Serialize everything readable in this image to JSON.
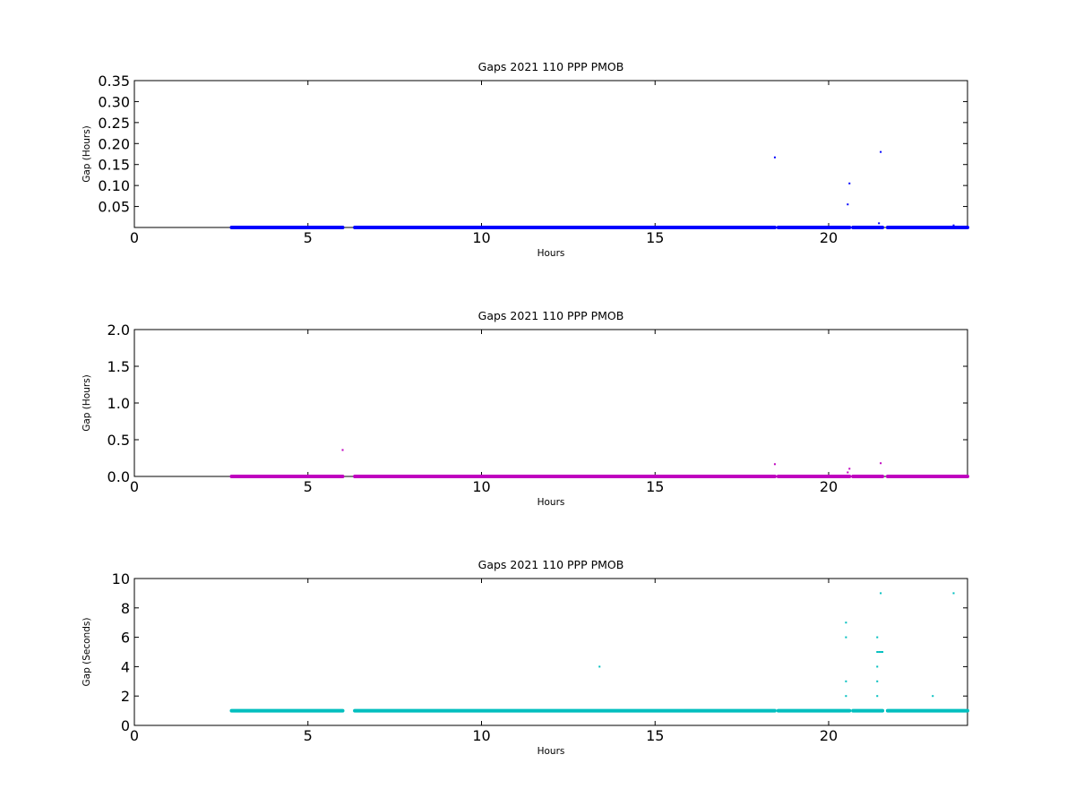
{
  "chart_data": [
    {
      "type": "scatter",
      "title": "Gaps 2021 110 PPP  PMOB",
      "xlabel": "Hours",
      "ylabel": "Gap (Hours)",
      "xlim": [
        0,
        24
      ],
      "ylim": [
        0,
        0.35
      ],
      "x_ticks": [
        "0",
        "5",
        "10",
        "15",
        "20"
      ],
      "y_ticks": [
        "0.05",
        "0.10",
        "0.15",
        "0.20",
        "0.25",
        "0.30",
        "0.35"
      ],
      "color": "#0000ff",
      "grid": false,
      "baseline_segments": [
        [
          2.8,
          6.0
        ],
        [
          6.35,
          18.45
        ],
        [
          18.55,
          20.6
        ],
        [
          20.7,
          21.55
        ],
        [
          21.7,
          24.0
        ]
      ],
      "baseline_value": 0.0,
      "points": [
        {
          "x": 18.45,
          "y": 0.167
        },
        {
          "x": 20.6,
          "y": 0.105
        },
        {
          "x": 20.55,
          "y": 0.055
        },
        {
          "x": 21.5,
          "y": 0.18
        },
        {
          "x": 21.45,
          "y": 0.01
        },
        {
          "x": 23.6,
          "y": 0.005
        }
      ]
    },
    {
      "type": "scatter",
      "title": "Gaps 2021 110 PPP  PMOB",
      "xlabel": "Hours",
      "ylabel": "Gap (Hours)",
      "xlim": [
        0,
        24
      ],
      "ylim": [
        0,
        2.0
      ],
      "x_ticks": [
        "0",
        "5",
        "10",
        "15",
        "20"
      ],
      "y_ticks": [
        "0.0",
        "0.5",
        "1.0",
        "1.5",
        "2.0"
      ],
      "color": "#bf00bf",
      "grid": false,
      "baseline_segments": [
        [
          2.8,
          6.0
        ],
        [
          6.35,
          18.45
        ],
        [
          18.55,
          20.6
        ],
        [
          20.7,
          21.55
        ],
        [
          21.7,
          24.0
        ]
      ],
      "baseline_value": 0.0,
      "points": [
        {
          "x": 6.0,
          "y": 0.36
        },
        {
          "x": 18.45,
          "y": 0.167
        },
        {
          "x": 20.6,
          "y": 0.105
        },
        {
          "x": 20.55,
          "y": 0.055
        },
        {
          "x": 21.5,
          "y": 0.18
        }
      ]
    },
    {
      "type": "scatter",
      "title": "Gaps 2021 110 PPP  PMOB",
      "xlabel": "Hours",
      "ylabel": "Gap (Seconds)",
      "xlim": [
        0,
        24
      ],
      "ylim": [
        0,
        10
      ],
      "x_ticks": [
        "0",
        "5",
        "10",
        "15",
        "20"
      ],
      "y_ticks": [
        "0",
        "2",
        "4",
        "6",
        "8",
        "10"
      ],
      "color": "#00bfbf",
      "grid": false,
      "baseline_segments": [
        [
          2.8,
          6.0
        ],
        [
          6.35,
          18.45
        ],
        [
          18.55,
          20.6
        ],
        [
          20.7,
          21.55
        ],
        [
          21.7,
          24.0
        ]
      ],
      "baseline_value": 1.0,
      "points": [
        {
          "x": 13.4,
          "y": 4
        },
        {
          "x": 20.5,
          "y": 7
        },
        {
          "x": 20.5,
          "y": 6
        },
        {
          "x": 20.5,
          "y": 3
        },
        {
          "x": 20.5,
          "y": 2
        },
        {
          "x": 21.4,
          "y": 6
        },
        {
          "x": 21.4,
          "y": 4
        },
        {
          "x": 21.4,
          "y": 3
        },
        {
          "x": 21.4,
          "y": 2
        },
        {
          "x": 21.5,
          "y": 9
        },
        {
          "x": 21.4,
          "y": 5
        },
        {
          "x": 21.45,
          "y": 5
        },
        {
          "x": 21.5,
          "y": 5
        },
        {
          "x": 21.55,
          "y": 5
        },
        {
          "x": 23.0,
          "y": 2
        },
        {
          "x": 23.6,
          "y": 9
        }
      ]
    }
  ]
}
